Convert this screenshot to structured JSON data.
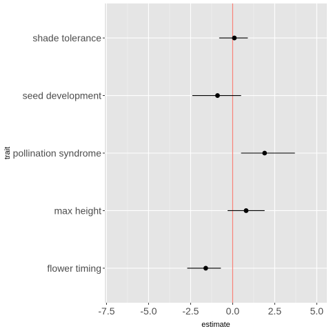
{
  "chart_data": {
    "type": "scatter",
    "subtype": "forest-plot",
    "title": "",
    "xlabel": "estimate",
    "ylabel": "trait",
    "xlim": [
      -7.6,
      5.6
    ],
    "x_ticks": [
      -7.5,
      -5.0,
      -2.5,
      0.0,
      2.5,
      5.0
    ],
    "x_tick_labels": [
      "-7.5",
      "-5.0",
      "-2.5",
      "0.0",
      "2.5",
      "5.0"
    ],
    "categories": [
      "shade tolerance",
      "seed development",
      "pollination syndrome",
      "max height",
      "flower timing"
    ],
    "series": [
      {
        "estimates": [
          0.1,
          -0.9,
          1.9,
          0.8,
          -1.6
        ],
        "lower": [
          -0.8,
          -2.4,
          0.5,
          -0.3,
          -2.7
        ],
        "upper": [
          0.9,
          0.5,
          3.7,
          1.9,
          -0.7
        ]
      }
    ],
    "reference_line": {
      "x": 0,
      "color": "#f8766d"
    },
    "grid": true,
    "panel_background": "#e5e5e5",
    "point_color": "#000000",
    "errorbar_color": "#000000"
  }
}
